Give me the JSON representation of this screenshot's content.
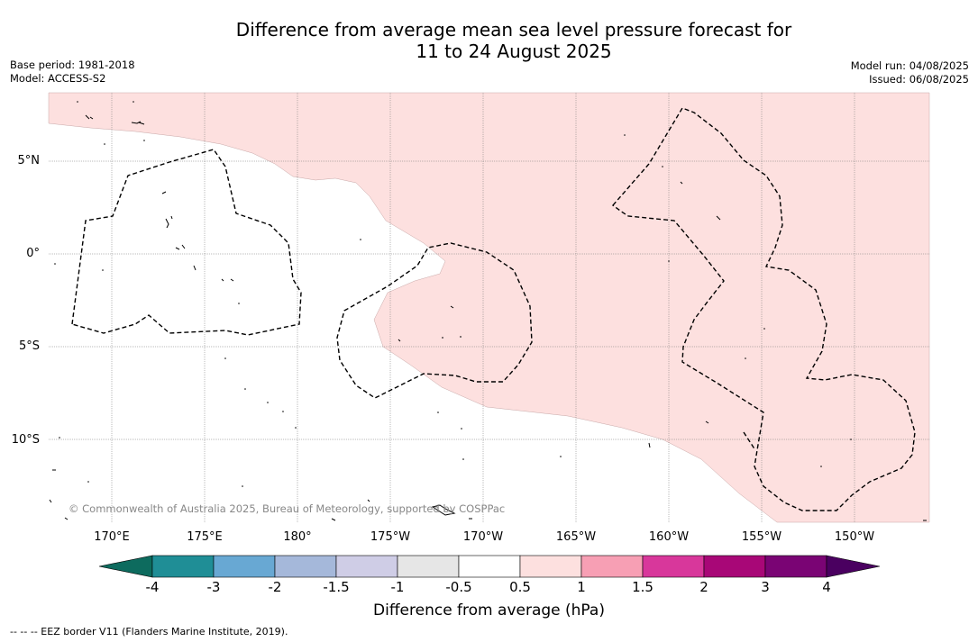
{
  "title_line1": "Difference from average mean sea level pressure forecast for",
  "title_line2": "11 to 24 August 2025",
  "base_period": "Base period: 1981-2018",
  "model": "Model: ACCESS-S2",
  "model_run": "Model run: 04/08/2025",
  "issued": "Issued: 06/08/2025",
  "lat_labels": [
    "5°N",
    "0°",
    "5°S",
    "10°S"
  ],
  "lon_labels": [
    "170°E",
    "175°E",
    "180°",
    "175°W",
    "170°W",
    "165°W",
    "160°W",
    "155°W",
    "150°W"
  ],
  "copyright": "© Commonwealth of Australia 2025, Bureau of Meteorology, supported by COSPPac",
  "colorbar": {
    "title": "Difference from average (hPa)",
    "ticks": [
      "-4",
      "-3",
      "-2",
      "-1.5",
      "-1",
      "-0.5",
      "0.5",
      "1",
      "1.5",
      "2",
      "3",
      "4"
    ],
    "colors": [
      "#0d6b5e",
      "#1f8e96",
      "#68a8d3",
      "#a5b8da",
      "#cfcde6",
      "#e6e6e6",
      "#ffffff",
      "#fde0df",
      "#f79fb4",
      "#d8379b",
      "#a80777",
      "#7a0474",
      "#4a0060"
    ]
  },
  "eez_note": "--  --  -- EEZ border V11 (Flanders Marine Institute, 2019).",
  "colors": {
    "positive_anomaly_fill": "#fde0df"
  }
}
